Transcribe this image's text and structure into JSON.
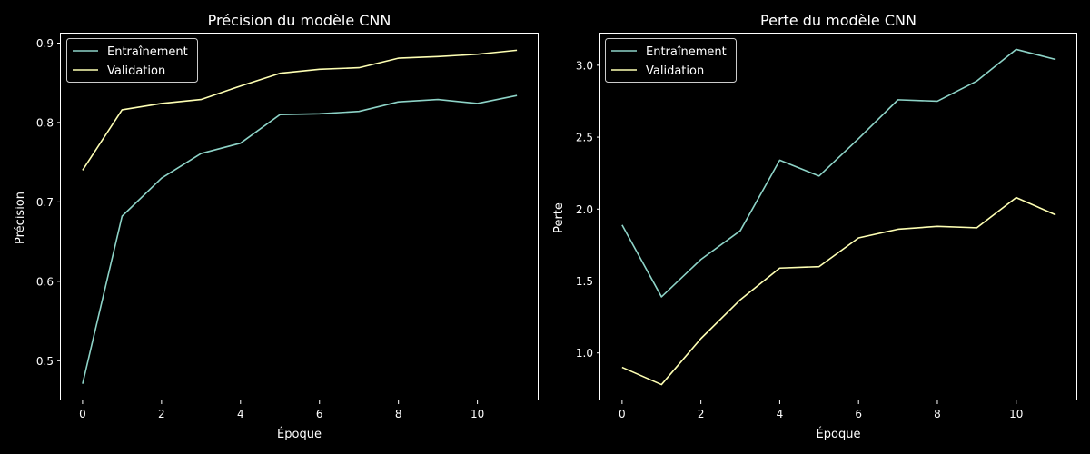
{
  "colors": {
    "background": "#000000",
    "foreground": "#ffffff",
    "series_train": "#8dd3c7",
    "series_val": "#feffb3"
  },
  "chart_data": [
    {
      "type": "line",
      "title": "Précision du modèle CNN",
      "xlabel": "Époque",
      "ylabel": "Précision",
      "x": [
        0,
        1,
        2,
        3,
        4,
        5,
        6,
        7,
        8,
        9,
        10,
        11
      ],
      "xlim": [
        -0.55,
        11.55
      ],
      "ylim": [
        0.45,
        0.912
      ],
      "xticks": [
        0,
        2,
        4,
        6,
        8,
        10
      ],
      "yticks": [
        0.5,
        0.6,
        0.7,
        0.8,
        0.9
      ],
      "ytick_labels": [
        "0.5",
        "0.6",
        "0.7",
        "0.8",
        "0.9"
      ],
      "grid": false,
      "legend": "top-left",
      "series": [
        {
          "name": "Entraînement",
          "color": "#8dd3c7",
          "values": [
            0.471,
            0.682,
            0.73,
            0.761,
            0.774,
            0.81,
            0.811,
            0.814,
            0.826,
            0.829,
            0.824,
            0.834
          ]
        },
        {
          "name": "Validation",
          "color": "#feffb3",
          "values": [
            0.74,
            0.816,
            0.824,
            0.829,
            0.846,
            0.862,
            0.867,
            0.869,
            0.881,
            0.883,
            0.886,
            0.891
          ]
        }
      ]
    },
    {
      "type": "line",
      "title": "Perte du modèle CNN",
      "xlabel": "Époque",
      "ylabel": "Perte",
      "x": [
        0,
        1,
        2,
        3,
        4,
        5,
        6,
        7,
        8,
        9,
        10,
        11
      ],
      "xlim": [
        -0.55,
        11.55
      ],
      "ylim": [
        0.67,
        3.22
      ],
      "xticks": [
        0,
        2,
        4,
        6,
        8,
        10
      ],
      "yticks": [
        1.0,
        1.5,
        2.0,
        2.5,
        3.0
      ],
      "ytick_labels": [
        "1.0",
        "1.5",
        "2.0",
        "2.5",
        "3.0"
      ],
      "grid": false,
      "legend": "top-left",
      "series": [
        {
          "name": "Entraînement",
          "color": "#8dd3c7",
          "values": [
            1.89,
            1.39,
            1.65,
            1.85,
            2.34,
            2.23,
            2.49,
            2.76,
            2.75,
            2.89,
            3.11,
            3.04
          ]
        },
        {
          "name": "Validation",
          "color": "#feffb3",
          "values": [
            0.9,
            0.78,
            1.1,
            1.37,
            1.59,
            1.6,
            1.8,
            1.86,
            1.88,
            1.87,
            2.08,
            1.96
          ]
        }
      ]
    }
  ]
}
